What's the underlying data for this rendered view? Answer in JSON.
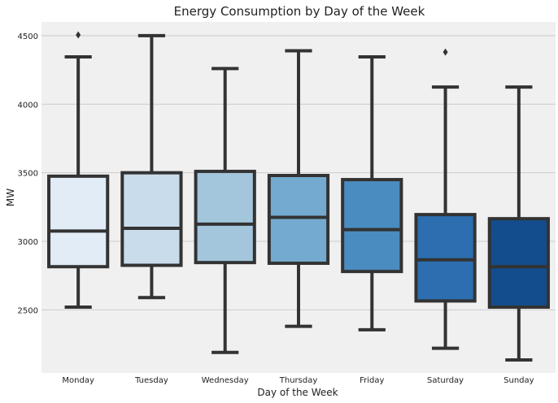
{
  "chart_data": {
    "type": "box",
    "title": "Energy Consumption by Day of the Week",
    "xlabel": "Day of the Week",
    "ylabel": "MW",
    "ylim": [
      2040,
      4600
    ],
    "yticks": [
      2500,
      3000,
      3500,
      4000,
      4500
    ],
    "grid": "horizontal",
    "categories": [
      "Monday",
      "Tuesday",
      "Wednesday",
      "Thursday",
      "Friday",
      "Saturday",
      "Sunday"
    ],
    "boxes": [
      {
        "whisker_low": 2520,
        "q1": 2815,
        "median": 3075,
        "q3": 3475,
        "whisker_high": 4345,
        "outliers": [
          4505
        ]
      },
      {
        "whisker_low": 2590,
        "q1": 2825,
        "median": 3095,
        "q3": 3500,
        "whisker_high": 4500,
        "outliers": []
      },
      {
        "whisker_low": 2190,
        "q1": 2845,
        "median": 3125,
        "q3": 3510,
        "whisker_high": 4260,
        "outliers": []
      },
      {
        "whisker_low": 2380,
        "q1": 2840,
        "median": 3175,
        "q3": 3480,
        "whisker_high": 4390,
        "outliers": []
      },
      {
        "whisker_low": 2355,
        "q1": 2780,
        "median": 3085,
        "q3": 3450,
        "whisker_high": 4345,
        "outliers": []
      },
      {
        "whisker_low": 2220,
        "q1": 2565,
        "median": 2865,
        "q3": 3195,
        "whisker_high": 4125,
        "outliers": [
          4380
        ]
      },
      {
        "whisker_low": 2135,
        "q1": 2520,
        "median": 2815,
        "q3": 3165,
        "whisker_high": 4125,
        "outliers": []
      }
    ],
    "colors": [
      "#e1ecf6",
      "#c9dcec",
      "#a3c6dc",
      "#74aad0",
      "#4a8cc0",
      "#2c6eaf",
      "#134d8d"
    ],
    "line_color": "#333333",
    "plot_background": "#f0f0f0"
  }
}
